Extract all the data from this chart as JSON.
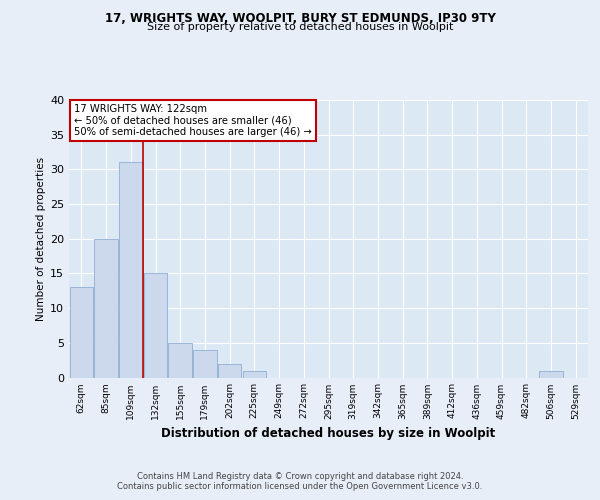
{
  "title1": "17, WRIGHTS WAY, WOOLPIT, BURY ST EDMUNDS, IP30 9TY",
  "title2": "Size of property relative to detached houses in Woolpit",
  "xlabel": "Distribution of detached houses by size in Woolpit",
  "ylabel": "Number of detached properties",
  "categories": [
    "62sqm",
    "85sqm",
    "109sqm",
    "132sqm",
    "155sqm",
    "179sqm",
    "202sqm",
    "225sqm",
    "249sqm",
    "272sqm",
    "295sqm",
    "319sqm",
    "342sqm",
    "365sqm",
    "389sqm",
    "412sqm",
    "436sqm",
    "459sqm",
    "482sqm",
    "506sqm",
    "529sqm"
  ],
  "values": [
    13,
    20,
    31,
    15,
    5,
    4,
    2,
    1,
    0,
    0,
    0,
    0,
    0,
    0,
    0,
    0,
    0,
    0,
    0,
    1,
    0
  ],
  "bar_color": "#ccd9ed",
  "bar_edge_color": "#8eadd4",
  "vline_color": "#c00000",
  "annotation_title": "17 WRIGHTS WAY: 122sqm",
  "annotation_line1": "← 50% of detached houses are smaller (46)",
  "annotation_line2": "50% of semi-detached houses are larger (46) →",
  "annotation_box_color": "#ffffff",
  "annotation_box_edge_color": "#c00000",
  "ylim": [
    0,
    40
  ],
  "yticks": [
    0,
    5,
    10,
    15,
    20,
    25,
    30,
    35,
    40
  ],
  "footer1": "Contains HM Land Registry data © Crown copyright and database right 2024.",
  "footer2": "Contains public sector information licensed under the Open Government Licence v3.0.",
  "fig_bg_color": "#e8eef8",
  "plot_bg_color": "#dde8f5"
}
